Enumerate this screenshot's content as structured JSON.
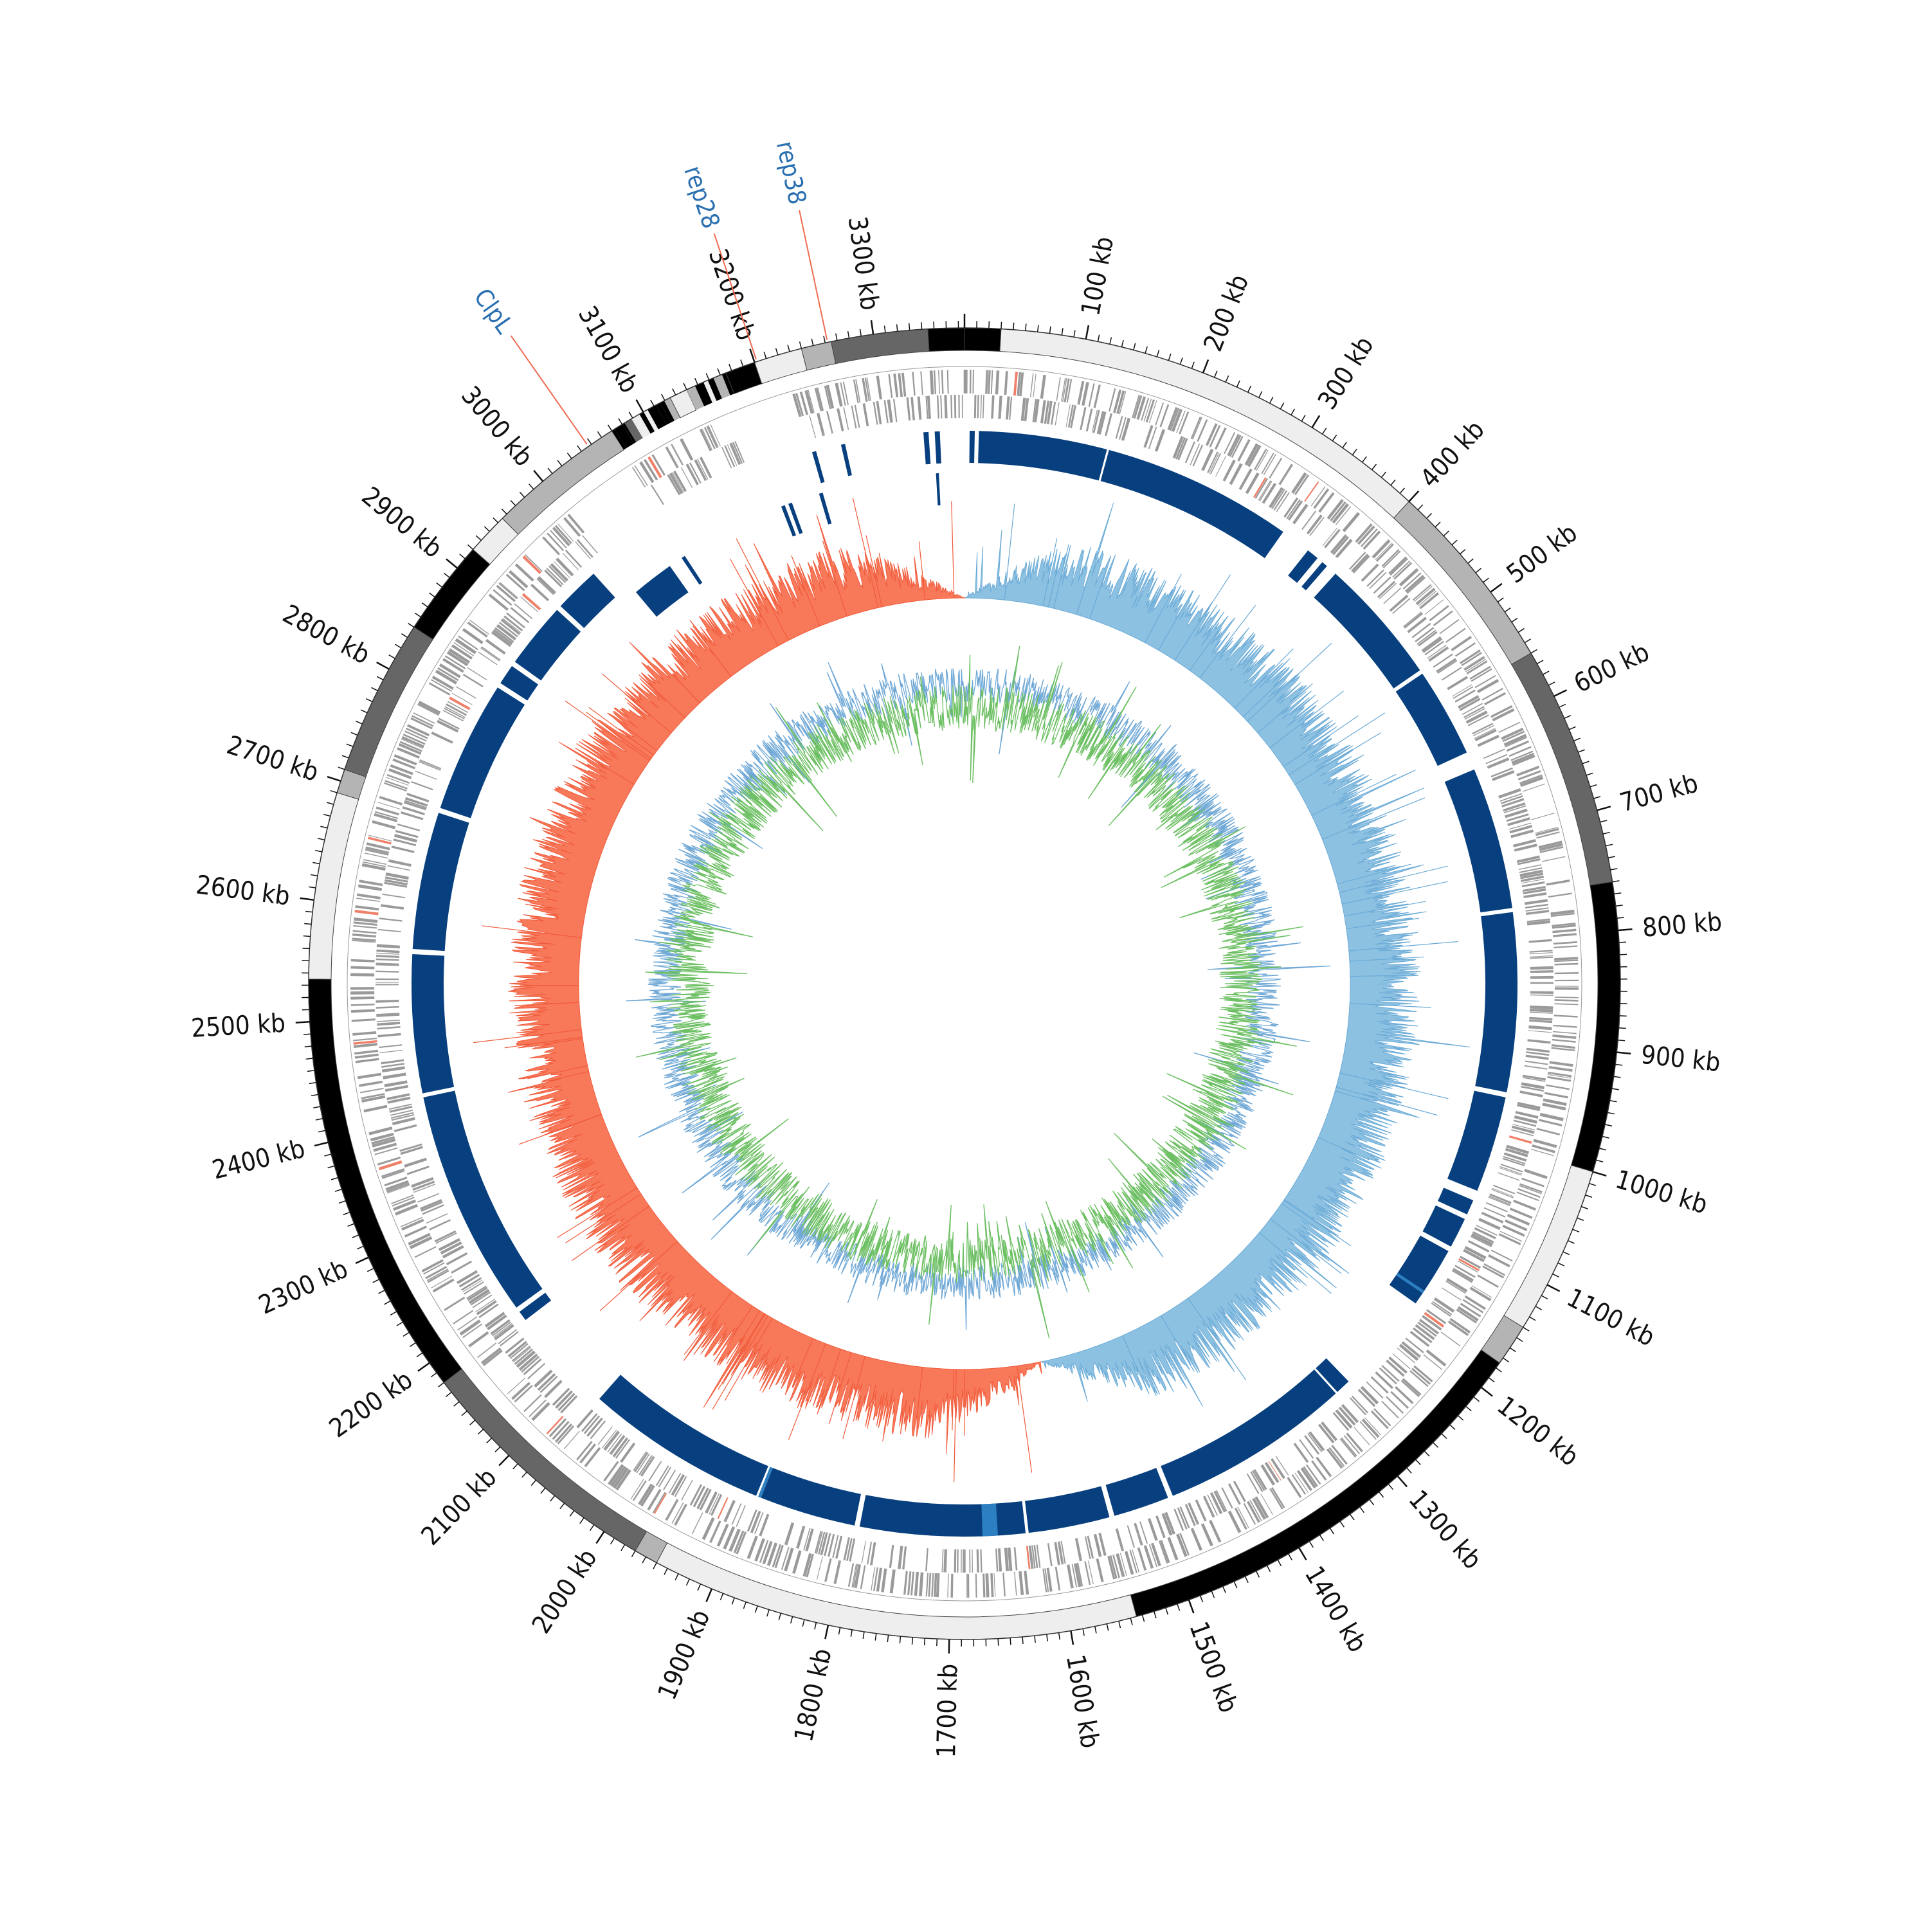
{
  "genome": {
    "length_kb": 3375,
    "tick_unit": "kb",
    "major_ticks_kb": [
      100,
      200,
      300,
      400,
      500,
      600,
      700,
      800,
      900,
      1000,
      1100,
      1200,
      1300,
      1400,
      1500,
      1600,
      1700,
      1800,
      1900,
      2000,
      2100,
      2200,
      2300,
      2400,
      2500,
      2600,
      2700,
      2800,
      2900,
      3000,
      3100,
      3200,
      3300
    ],
    "minor_tick_step_kb": 10
  },
  "colors": {
    "ideogram_light": "#eeeeee",
    "ideogram_mid": "#b4b4b4",
    "ideogram_dark": "#666666",
    "ideogram_black": "#000000",
    "gene_gray": "#9a9a9a",
    "gene_red": "#f07f68",
    "block_blue": "#08407f",
    "block_light_blue": "#2c7fc0",
    "skew_positive": "#8dc1e2",
    "skew_negative": "#f7795a",
    "skew_outline_pos": "#6aaad6",
    "skew_outline_neg": "#f05a3a",
    "gc_blue": "#6fa8d6",
    "gc_green": "#6cbf62",
    "label_blue": "#2a6fb0",
    "connector_red": "#f06a50"
  },
  "ideogram_segments": [
    {
      "start": 0,
      "end": 30,
      "shade": "black"
    },
    {
      "start": 30,
      "end": 400,
      "shade": "light"
    },
    {
      "start": 400,
      "end": 560,
      "shade": "mid"
    },
    {
      "start": 560,
      "end": 760,
      "shade": "dark"
    },
    {
      "start": 760,
      "end": 1000,
      "shade": "black"
    },
    {
      "start": 1000,
      "end": 1140,
      "shade": "light"
    },
    {
      "start": 1140,
      "end": 1175,
      "shade": "mid"
    },
    {
      "start": 1175,
      "end": 1545,
      "shade": "black"
    },
    {
      "start": 1545,
      "end": 1950,
      "shade": "light"
    },
    {
      "start": 1950,
      "end": 1970,
      "shade": "mid"
    },
    {
      "start": 1970,
      "end": 2180,
      "shade": "dark"
    },
    {
      "start": 2180,
      "end": 2535,
      "shade": "black"
    },
    {
      "start": 2535,
      "end": 2690,
      "shade": "light"
    },
    {
      "start": 2690,
      "end": 2710,
      "shade": "mid"
    },
    {
      "start": 2710,
      "end": 2840,
      "shade": "dark"
    },
    {
      "start": 2840,
      "end": 2920,
      "shade": "black"
    },
    {
      "start": 2920,
      "end": 2955,
      "shade": "light"
    },
    {
      "start": 2955,
      "end": 3070,
      "shade": "mid"
    },
    {
      "start": 3070,
      "end": 3125,
      "shade": "mosaic"
    },
    {
      "start": 3125,
      "end": 3140,
      "shade": "light"
    },
    {
      "start": 3140,
      "end": 3175,
      "shade": "mosaic"
    },
    {
      "start": 3175,
      "end": 3200,
      "shade": "black"
    },
    {
      "start": 3200,
      "end": 3240,
      "shade": "light"
    },
    {
      "start": 3240,
      "end": 3265,
      "shade": "mid"
    },
    {
      "start": 3265,
      "end": 3345,
      "shade": "dark"
    },
    {
      "start": 3345,
      "end": 3375,
      "shade": "black"
    }
  ],
  "conserved_blocks": [
    {
      "start": 5,
      "end": 10,
      "tier": "outer"
    },
    {
      "start": 14,
      "end": 140,
      "tier": "outer"
    },
    {
      "start": 142,
      "end": 330,
      "tier": "outer"
    },
    {
      "start": 360,
      "end": 372,
      "tier": "outer"
    },
    {
      "start": 378,
      "end": 384,
      "tier": "outer"
    },
    {
      "start": 395,
      "end": 520,
      "tier": "outer"
    },
    {
      "start": 524,
      "end": 612,
      "tier": "outer"
    },
    {
      "start": 630,
      "end": 770,
      "tier": "outer"
    },
    {
      "start": 774,
      "end": 950,
      "tier": "outer"
    },
    {
      "start": 955,
      "end": 1050,
      "tier": "outer"
    },
    {
      "start": 1060,
      "end": 1075,
      "tier": "outer"
    },
    {
      "start": 1080,
      "end": 1110,
      "tier": "outer"
    },
    {
      "start": 1115,
      "end": 1175,
      "tier": "outer"
    },
    {
      "start": 1275,
      "end": 1290,
      "tier": "outer"
    },
    {
      "start": 1292,
      "end": 1480,
      "tier": "outer"
    },
    {
      "start": 1485,
      "end": 1540,
      "tier": "outer"
    },
    {
      "start": 1545,
      "end": 1625,
      "tier": "outer"
    },
    {
      "start": 1628,
      "end": 1790,
      "tier": "outer"
    },
    {
      "start": 1795,
      "end": 1890,
      "tier": "outer"
    },
    {
      "start": 1895,
      "end": 2075,
      "tier": "outer"
    },
    {
      "start": 2180,
      "end": 2190,
      "tier": "outer"
    },
    {
      "start": 2195,
      "end": 2420,
      "tier": "outer"
    },
    {
      "start": 2424,
      "end": 2560,
      "tier": "outer"
    },
    {
      "start": 2565,
      "end": 2700,
      "tier": "outer"
    },
    {
      "start": 2705,
      "end": 2835,
      "tier": "outer"
    },
    {
      "start": 2840,
      "end": 2860,
      "tier": "outer"
    },
    {
      "start": 2865,
      "end": 2930,
      "tier": "outer"
    },
    {
      "start": 2935,
      "end": 2980,
      "tier": "outer"
    },
    {
      "start": 3225,
      "end": 3229,
      "tier": "outer"
    },
    {
      "start": 3254,
      "end": 3258,
      "tier": "outer"
    },
    {
      "start": 3335,
      "end": 3340,
      "tier": "outer"
    },
    {
      "start": 3346,
      "end": 3351,
      "tier": "outer"
    },
    {
      "start": 3000,
      "end": 3045,
      "tier": "inner"
    },
    {
      "start": 3060,
      "end": 3064,
      "tier": "inner"
    },
    {
      "start": 3178,
      "end": 3182,
      "tier": "inner"
    },
    {
      "start": 3186,
      "end": 3190,
      "tier": "inner"
    },
    {
      "start": 3220,
      "end": 3224,
      "tier": "inner"
    },
    {
      "start": 3345,
      "end": 3348,
      "tier": "inner"
    }
  ],
  "gene_annotations": [
    {
      "label": "ClpL",
      "position_kb": 3047
    },
    {
      "label": "rep28",
      "position_kb": 3202
    },
    {
      "label": "rep38",
      "position_kb": 3262
    }
  ],
  "gc_skew_track": {
    "positive_range_kb": [
      0,
      1580
    ],
    "negative_range_kb": [
      1580,
      3375
    ]
  },
  "gc_content_track": {
    "series": [
      "gc_content",
      "gc_variation"
    ]
  }
}
